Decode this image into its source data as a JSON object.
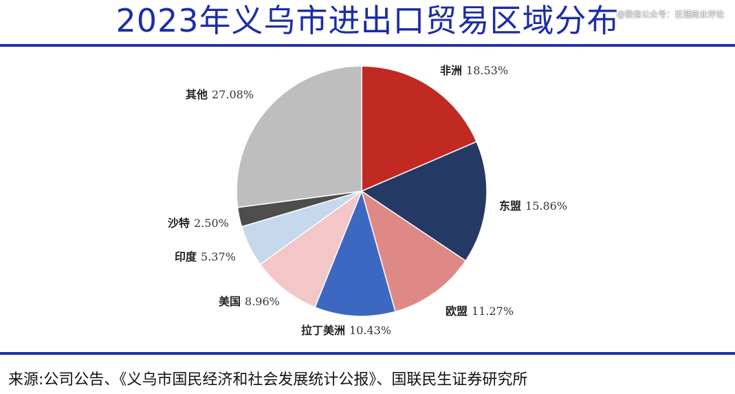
{
  "header": {
    "title": "2023年义乌市进出口贸易区域分布",
    "watermark": "@微信公众号：巨潮商业评论"
  },
  "footer": {
    "source": "来源:公司公告、《义乌市国民经济和社会发展统计公报》、国联民生证券研究所"
  },
  "chart_data": {
    "type": "pie",
    "title": "2023年义乌市进出口贸易区域分布",
    "slices": [
      {
        "name": "非洲",
        "value": 18.53,
        "label": "18.53%",
        "color": "#c12a23"
      },
      {
        "name": "东盟",
        "value": 15.86,
        "label": "15.86%",
        "color": "#243964"
      },
      {
        "name": "欧盟",
        "value": 11.27,
        "label": "11.27%",
        "color": "#de8986"
      },
      {
        "name": "拉丁美洲",
        "value": 10.43,
        "label": "10.43%",
        "color": "#3d68c2"
      },
      {
        "name": "美国",
        "value": 8.96,
        "label": "8.96%",
        "color": "#f3c6c8"
      },
      {
        "name": "印度",
        "value": 5.37,
        "label": "5.37%",
        "color": "#c6d8ec"
      },
      {
        "name": "沙特",
        "value": 2.5,
        "label": "2.50%",
        "color": "#4d4d4d"
      },
      {
        "name": "其他",
        "value": 27.08,
        "label": "27.08%",
        "color": "#bebebe"
      }
    ],
    "start_angle": "12 o'clock",
    "direction": "clockwise"
  }
}
